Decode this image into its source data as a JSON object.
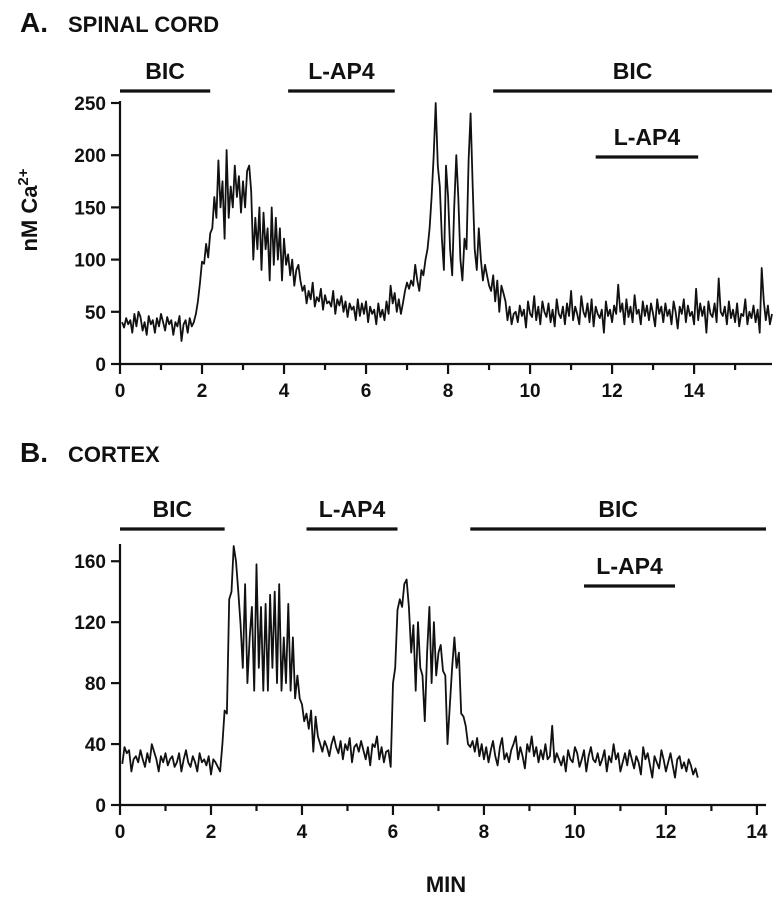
{
  "chart_data": [
    {
      "type": "line",
      "panel_letter": "A.",
      "title": "SPINAL CORD",
      "ylabel": "nM Ca2+",
      "ylabel_main": "nM Ca",
      "ylabel_sup": "2+",
      "xlabel": "",
      "xlim": [
        0,
        15.9
      ],
      "ylim": [
        0,
        250
      ],
      "x_ticks": [
        0,
        2,
        4,
        6,
        8,
        10,
        12,
        14
      ],
      "y_ticks": [
        0,
        50,
        100,
        150,
        200,
        250
      ],
      "drug_bars": [
        {
          "label": "BIC",
          "start": 0.0,
          "end": 2.2,
          "row": 1
        },
        {
          "label": "L-AP4",
          "start": 4.1,
          "end": 6.7,
          "row": 1
        },
        {
          "label": "BIC",
          "start": 9.1,
          "end": 15.9,
          "row": 1
        },
        {
          "label": "L-AP4",
          "start": 11.6,
          "end": 14.1,
          "row": 2
        }
      ],
      "series": [
        {
          "dx": 0.05,
          "x_start": 0.05,
          "values": [
            40,
            35,
            44,
            38,
            42,
            30,
            48,
            36,
            50,
            45,
            32,
            40,
            28,
            46,
            38,
            42,
            30,
            44,
            36,
            48,
            40,
            32,
            45,
            38,
            42,
            28,
            40,
            36,
            46,
            22,
            38,
            42,
            30,
            44,
            36,
            40,
            48,
            60,
            78,
            98,
            96,
            115,
            102,
            125,
            130,
            160,
            140,
            195,
            150,
            175,
            120,
            205,
            140,
            170,
            150,
            190,
            160,
            180,
            145,
            175,
            150,
            185,
            190,
            165,
            100,
            140,
            110,
            150,
            90,
            145,
            110,
            130,
            80,
            150,
            95,
            140,
            100,
            130,
            80,
            120,
            95,
            105,
            85,
            100,
            75,
            90,
            95,
            80,
            70,
            75,
            58,
            70,
            62,
            78,
            55,
            64,
            60,
            72,
            52,
            66,
            58,
            60,
            55,
            70,
            48,
            62,
            56,
            65,
            50,
            60,
            45,
            58,
            52,
            55,
            42,
            62,
            46,
            58,
            48,
            60,
            40,
            55,
            48,
            52,
            38,
            58,
            45,
            52,
            42,
            60,
            48,
            75,
            58,
            68,
            50,
            62,
            48,
            58,
            70,
            78,
            72,
            80,
            75,
            95,
            80,
            70,
            90,
            85,
            100,
            110,
            130,
            160,
            200,
            250,
            190,
            170,
            120,
            90,
            190,
            160,
            110,
            85,
            150,
            200,
            160,
            100,
            80,
            120,
            110,
            195,
            240,
            170,
            110,
            90,
            130,
            100,
            80,
            95,
            85,
            75,
            70,
            85,
            60,
            80,
            50,
            75,
            68,
            60,
            42,
            55,
            38,
            48,
            50,
            40,
            56,
            46,
            52,
            35,
            60,
            48,
            45,
            65,
            42,
            55,
            38,
            60,
            50,
            45,
            58,
            40,
            52,
            36,
            62,
            48,
            44,
            55,
            38,
            58,
            46,
            70,
            42,
            55,
            48,
            38,
            65,
            50,
            45,
            58,
            40,
            62,
            36,
            55,
            48,
            44,
            52,
            30,
            60,
            46,
            52,
            40,
            56,
            48,
            76,
            50,
            58,
            38,
            62,
            45,
            55,
            40,
            66,
            48,
            52,
            38,
            60,
            46,
            56,
            42,
            58,
            48,
            36,
            62,
            48,
            55,
            40,
            58,
            46,
            52,
            38,
            60,
            50,
            34,
            55,
            48,
            62,
            40,
            56,
            46,
            50,
            38,
            72,
            42,
            58,
            46,
            55,
            30,
            60,
            48,
            45,
            58,
            40,
            82,
            50,
            46,
            55,
            38,
            60,
            44,
            52,
            40,
            58,
            36,
            48,
            46,
            62,
            38,
            50,
            44,
            56,
            40,
            52,
            30,
            92,
            60,
            42,
            56,
            38,
            48,
            44,
            50,
            35,
            42,
            58,
            40,
            26,
            64
          ]
        }
      ]
    },
    {
      "type": "line",
      "panel_letter": "B.",
      "title": "CORTEX",
      "xlabel": "MIN",
      "ylabel": "",
      "xlim": [
        0,
        14.2
      ],
      "ylim": [
        0,
        170
      ],
      "x_ticks": [
        0,
        2,
        4,
        6,
        8,
        10,
        12,
        14
      ],
      "y_ticks": [
        0,
        40,
        80,
        120,
        160
      ],
      "drug_bars": [
        {
          "label": "BIC",
          "start": 0.0,
          "end": 2.3,
          "row": 1
        },
        {
          "label": "L-AP4",
          "start": 4.1,
          "end": 6.1,
          "row": 1
        },
        {
          "label": "BIC",
          "start": 7.7,
          "end": 14.2,
          "row": 1
        },
        {
          "label": "L-AP4",
          "start": 10.2,
          "end": 12.2,
          "row": 2
        }
      ],
      "series": [
        {
          "dx": 0.05,
          "x_start": 0.05,
          "values": [
            27,
            38,
            34,
            36,
            22,
            30,
            32,
            28,
            36,
            30,
            25,
            34,
            28,
            40,
            35,
            30,
            22,
            32,
            28,
            34,
            26,
            30,
            32,
            25,
            28,
            34,
            22,
            30,
            36,
            28,
            25,
            32,
            28,
            22,
            34,
            28,
            30,
            26,
            32,
            20,
            30,
            28,
            25,
            22,
            40,
            62,
            60,
            135,
            140,
            170,
            160,
            140,
            118,
            90,
            145,
            80,
            110,
            130,
            75,
            158,
            90,
            130,
            75,
            132,
            75,
            138,
            90,
            140,
            80,
            145,
            75,
            110,
            80,
            132,
            75,
            110,
            70,
            85,
            70,
            66,
            55,
            60,
            50,
            62,
            35,
            58,
            45,
            40,
            35,
            42,
            38,
            32,
            40,
            45,
            38,
            34,
            42,
            30,
            40,
            36,
            44,
            28,
            38,
            40,
            35,
            42,
            36,
            30,
            38,
            26,
            40,
            38,
            45,
            30,
            38,
            28,
            35,
            36,
            25,
            80,
            90,
            128,
            135,
            130,
            145,
            148,
            130,
            100,
            118,
            75,
            120,
            90,
            85,
            55,
            100,
            130,
            80,
            120,
            85,
            100,
            105,
            88,
            85,
            40,
            65,
            90,
            110,
            90,
            100,
            60,
            58,
            52,
            40,
            38,
            42,
            35,
            44,
            32,
            40,
            30,
            38,
            28,
            36,
            42,
            32,
            26,
            38,
            44,
            30,
            34,
            28,
            36,
            40,
            45,
            30,
            38,
            32,
            24,
            40,
            35,
            45,
            32,
            38,
            28,
            36,
            30,
            40,
            30,
            32,
            52,
            28,
            34,
            30,
            26,
            32,
            22,
            36,
            30,
            28,
            38,
            34,
            25,
            30,
            36,
            22,
            32,
            38,
            30,
            28,
            34,
            26,
            30,
            36,
            22,
            32,
            28,
            40,
            30,
            34,
            22,
            28,
            34,
            26,
            36,
            30,
            24,
            32,
            28,
            20,
            38,
            30,
            34,
            26,
            18,
            32,
            28,
            24,
            36,
            30,
            22,
            28,
            34,
            26,
            18,
            30,
            32,
            24,
            28,
            22,
            30,
            26,
            20,
            24,
            18
          ]
        }
      ]
    }
  ]
}
